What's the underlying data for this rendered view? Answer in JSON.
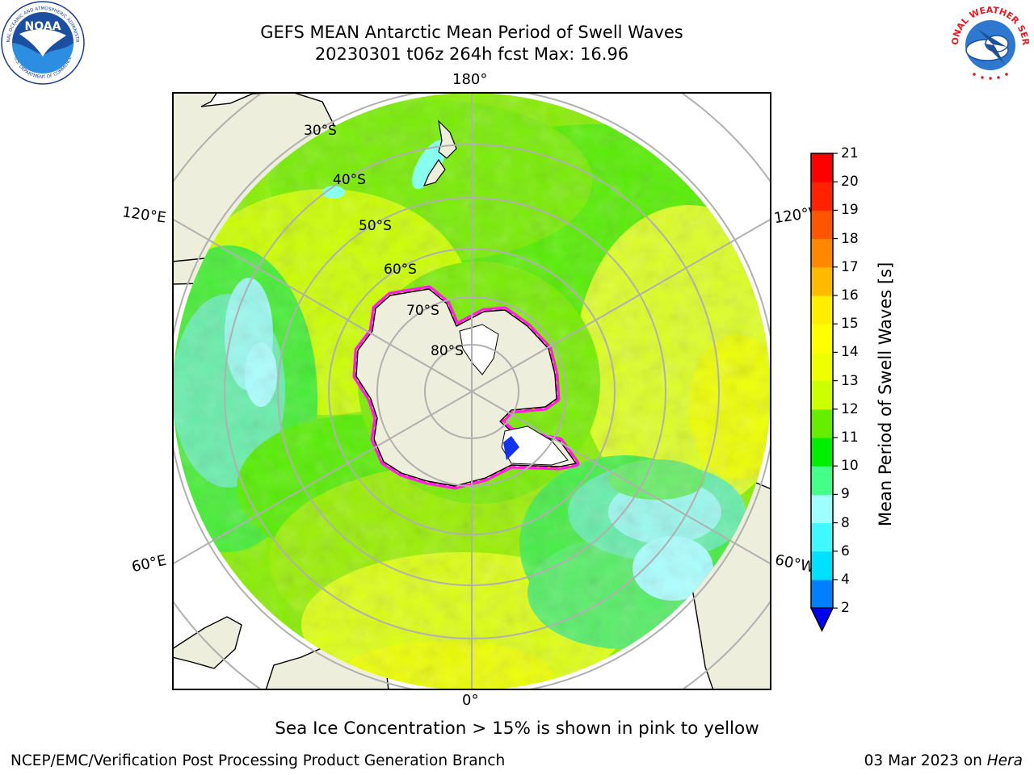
{
  "header": {
    "title_line1": "GEFS MEAN Antarctic Mean Period of Swell Waves",
    "title_line2": "20230301 t06z 264h fcst   Max: 16.96"
  },
  "logos": {
    "left": {
      "name": "NOARA logo",
      "arc_text": "NATIONAL OCEANIC AND ATMOSPHERIC ADMINISTRATION",
      "bottom_text": "U.S. DEPARTMENT OF COMMERCE",
      "center_text": "NOAA"
    },
    "right": {
      "name": "NWS logo",
      "arc_text": "NATIONAL WEATHER SERVICE"
    }
  },
  "map": {
    "projection": "south-polar-stereographic",
    "longitude_labels": {
      "top": "180°",
      "bottom": "0°",
      "upper_left": "120°E",
      "lower_left": "60°E",
      "upper_right": "120°W",
      "lower_right": "60°W"
    },
    "latitude_labels": [
      "30°S",
      "40°S",
      "50°S",
      "60°S",
      "70°S",
      "80°S"
    ],
    "colors": {
      "land": "#EEEEDD",
      "ice": "#FFFFFF",
      "ice_edge": "#FF33CC",
      "grid": "#B0B0B0",
      "coast": "#000000"
    }
  },
  "colorbar": {
    "label": "Mean Period of Swell Waves [s]",
    "ticks": [
      "2",
      "4",
      "6",
      "8",
      "9",
      "10",
      "11",
      "12",
      "13",
      "14",
      "15",
      "16",
      "17",
      "18",
      "19",
      "20",
      "21"
    ],
    "colors": [
      "#0030F0",
      "#0080FF",
      "#00E0FF",
      "#40F8FF",
      "#A0FFFF",
      "#44FF88",
      "#00EE00",
      "#66EE00",
      "#CCFF00",
      "#EEFF00",
      "#FFFF00",
      "#FFEE00",
      "#FFBB00",
      "#FF8800",
      "#FF5500",
      "#FF2200",
      "#FF0000"
    ],
    "under_color": "#0000EE"
  },
  "footer": {
    "note": "Sea Ice Concentration > 15% is shown in pink to yellow",
    "credit_left": "NCEP/EMC/Verification Post Processing Product Generation Branch",
    "date_text": "03 Mar 2023 on ",
    "machine": "Hera"
  }
}
